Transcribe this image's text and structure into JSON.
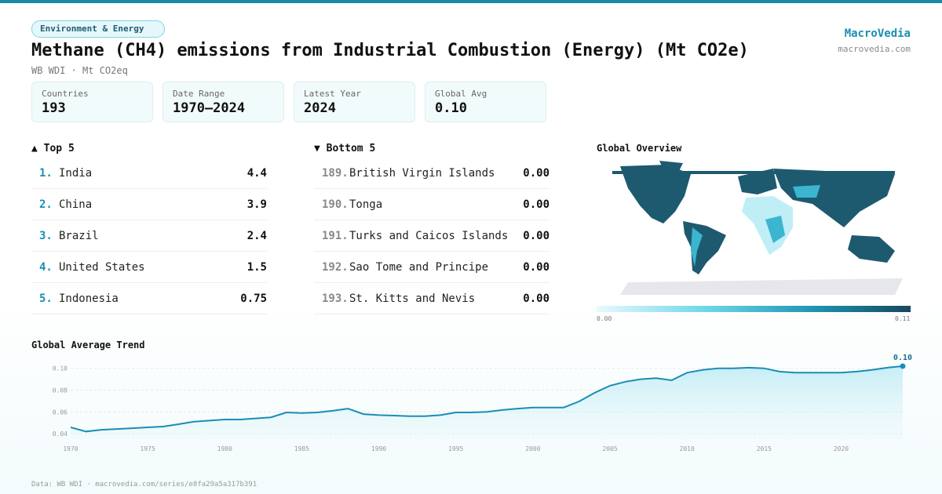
{
  "header": {
    "tag": "Environment & Energy",
    "title": "Methane (CH4) emissions from Industrial Combustion (Energy) (Mt CO2e)",
    "subtitle": "WB WDI · Mt CO2eq",
    "brand": "MacroVedia",
    "site": "macrovedia.com"
  },
  "stats": [
    {
      "label": "Countries",
      "value": "193"
    },
    {
      "label": "Date Range",
      "value": "1970–2024"
    },
    {
      "label": "Latest Year",
      "value": "2024"
    },
    {
      "label": "Global Avg",
      "value": "0.10"
    }
  ],
  "top5": {
    "title": "▲ Top 5",
    "rows": [
      {
        "rank": "1.",
        "name": "India",
        "value": "4.4"
      },
      {
        "rank": "2.",
        "name": "China",
        "value": "3.9"
      },
      {
        "rank": "3.",
        "name": "Brazil",
        "value": "2.4"
      },
      {
        "rank": "4.",
        "name": "United States",
        "value": "1.5"
      },
      {
        "rank": "5.",
        "name": "Indonesia",
        "value": "0.75"
      }
    ]
  },
  "bottom5": {
    "title": "▼ Bottom 5",
    "rows": [
      {
        "rank": "189.",
        "name": "British Virgin Islands",
        "value": "0.00"
      },
      {
        "rank": "190.",
        "name": "Tonga",
        "value": "0.00"
      },
      {
        "rank": "191.",
        "name": "Turks and Caicos Islands",
        "value": "0.00"
      },
      {
        "rank": "192.",
        "name": "Sao Tome and Principe",
        "value": "0.00"
      },
      {
        "rank": "193.",
        "name": "St. Kitts and Nevis",
        "value": "0.00"
      }
    ]
  },
  "map": {
    "title": "Global Overview",
    "legend_min": "0.00",
    "legend_max": "0.11"
  },
  "chart_data": {
    "type": "line",
    "title": "Global Average Trend",
    "color": "#1a8db5",
    "x": [
      1970,
      1971,
      1972,
      1973,
      1974,
      1975,
      1976,
      1977,
      1978,
      1979,
      1980,
      1981,
      1982,
      1983,
      1984,
      1985,
      1986,
      1987,
      1988,
      1989,
      1990,
      1991,
      1992,
      1993,
      1994,
      1995,
      1996,
      1997,
      1998,
      1999,
      2000,
      2001,
      2002,
      2003,
      2004,
      2005,
      2006,
      2007,
      2008,
      2009,
      2010,
      2011,
      2012,
      2013,
      2014,
      2015,
      2016,
      2017,
      2018,
      2019,
      2020,
      2021,
      2022,
      2023,
      2024
    ],
    "values": [
      0.0458,
      0.042,
      0.0436,
      0.0443,
      0.045,
      0.0458,
      0.0465,
      0.0487,
      0.051,
      0.052,
      0.053,
      0.053,
      0.054,
      0.055,
      0.0595,
      0.059,
      0.0595,
      0.061,
      0.063,
      0.058,
      0.057,
      0.0566,
      0.056,
      0.056,
      0.057,
      0.0595,
      0.0595,
      0.06,
      0.0617,
      0.063,
      0.064,
      0.064,
      0.064,
      0.0696,
      0.0775,
      0.084,
      0.0877,
      0.09,
      0.091,
      0.089,
      0.096,
      0.0985,
      0.1,
      0.1,
      0.1006,
      0.1,
      0.097,
      0.096,
      0.096,
      0.096,
      0.096,
      0.097,
      0.0985,
      0.1006,
      0.102
    ],
    "end_label": "0.10",
    "xlim": [
      1970,
      2024
    ],
    "xticks": [
      1970,
      1975,
      1980,
      1985,
      1990,
      1995,
      2000,
      2005,
      2010,
      2015,
      2020
    ],
    "ylim": [
      0.035,
      0.107
    ],
    "yticks": [
      0.04,
      0.06,
      0.08,
      {
        "value": 0.1,
        "label": "0.10"
      }
    ],
    "grid": true
  },
  "footer": "Data: WB WDI · macrovedia.com/series/e8fa29a5a317b391"
}
